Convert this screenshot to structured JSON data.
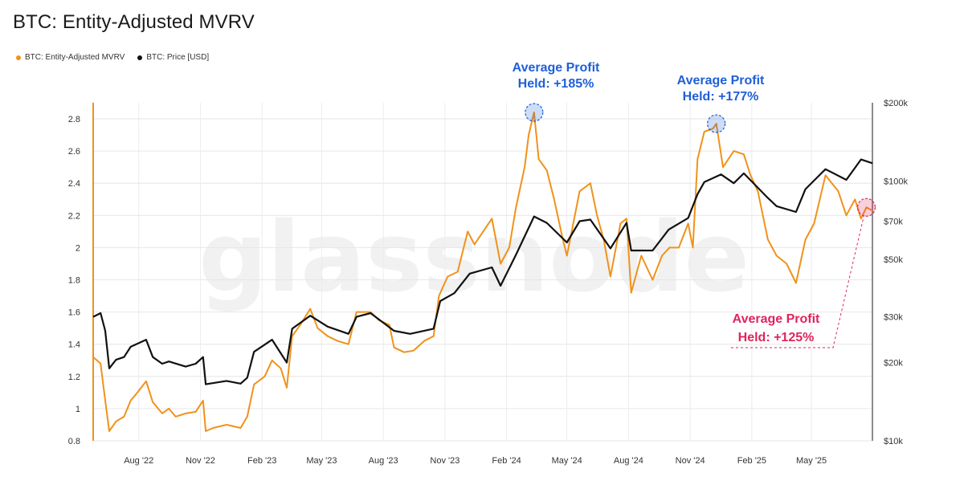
{
  "page": {
    "title": "BTC: Entity-Adjusted MVRV"
  },
  "legend": [
    {
      "label": "BTC: Entity-Adjusted MVRV",
      "color": "#f0921a"
    },
    {
      "label": "BTC: Price [USD]",
      "color": "#111111"
    }
  ],
  "watermark": "glassnode",
  "annotations": [
    {
      "line1": "Average Profit",
      "line2": "Held: +185%",
      "color": "#1f5fd8",
      "marker_date": "2024-03-13",
      "marker_value": 2.84
    },
    {
      "line1": "Average Profit",
      "line2": "Held: +177%",
      "color": "#1f5fd8",
      "marker_date": "2024-12-10",
      "marker_value": 2.77
    },
    {
      "line1": "Average Profit",
      "line2": "Held: +125%",
      "color": "#e0245e",
      "marker_date": "2025-07-22",
      "marker_value": 2.25
    }
  ],
  "chart_data": {
    "type": "line",
    "title": "BTC: Entity-Adjusted MVRV",
    "x_ticks": [
      "Aug '22",
      "Nov '22",
      "Feb '23",
      "May '23",
      "Aug '23",
      "Nov '23",
      "Feb '24",
      "May '24",
      "Aug '24",
      "Nov '24",
      "Feb '25",
      "May '25"
    ],
    "x_range": [
      "2022-05-25",
      "2025-07-31"
    ],
    "y_left_ticks": [
      "0.8",
      "1",
      "1.2",
      "1.4",
      "1.6",
      "1.8",
      "2",
      "2.2",
      "2.4",
      "2.6",
      "2.8"
    ],
    "y_left_range": [
      0.8,
      2.9
    ],
    "y_right_ticks": [
      "$10k",
      "$20k",
      "$30k",
      "$50k",
      "$70k",
      "$100k",
      "$200k"
    ],
    "y_right_values": [
      10000,
      20000,
      30000,
      50000,
      70000,
      100000,
      200000
    ],
    "y_right_scale": "log",
    "y_right_range": [
      10000,
      200000
    ],
    "series": [
      {
        "name": "BTC: Entity-Adjusted MVRV",
        "axis": "left",
        "color": "#f0921a",
        "points": [
          [
            "2022-05-25",
            1.32
          ],
          [
            "2022-06-05",
            1.28
          ],
          [
            "2022-06-12",
            1.05
          ],
          [
            "2022-06-18",
            0.86
          ],
          [
            "2022-06-28",
            0.92
          ],
          [
            "2022-07-10",
            0.95
          ],
          [
            "2022-07-20",
            1.05
          ],
          [
            "2022-07-30",
            1.1
          ],
          [
            "2022-08-12",
            1.17
          ],
          [
            "2022-08-22",
            1.04
          ],
          [
            "2022-09-05",
            0.97
          ],
          [
            "2022-09-15",
            1.0
          ],
          [
            "2022-09-25",
            0.95
          ],
          [
            "2022-10-10",
            0.97
          ],
          [
            "2022-10-25",
            0.98
          ],
          [
            "2022-11-05",
            1.05
          ],
          [
            "2022-11-09",
            0.86
          ],
          [
            "2022-11-20",
            0.88
          ],
          [
            "2022-12-10",
            0.9
          ],
          [
            "2022-12-31",
            0.88
          ],
          [
            "2023-01-10",
            0.95
          ],
          [
            "2023-01-20",
            1.15
          ],
          [
            "2023-02-05",
            1.2
          ],
          [
            "2023-02-16",
            1.3
          ],
          [
            "2023-03-01",
            1.25
          ],
          [
            "2023-03-10",
            1.13
          ],
          [
            "2023-03-18",
            1.45
          ],
          [
            "2023-03-30",
            1.52
          ],
          [
            "2023-04-14",
            1.62
          ],
          [
            "2023-04-25",
            1.5
          ],
          [
            "2023-05-10",
            1.45
          ],
          [
            "2023-05-25",
            1.42
          ],
          [
            "2023-06-10",
            1.4
          ],
          [
            "2023-06-22",
            1.6
          ],
          [
            "2023-07-13",
            1.6
          ],
          [
            "2023-07-25",
            1.55
          ],
          [
            "2023-08-10",
            1.52
          ],
          [
            "2023-08-17",
            1.38
          ],
          [
            "2023-09-01",
            1.35
          ],
          [
            "2023-09-15",
            1.36
          ],
          [
            "2023-10-01",
            1.42
          ],
          [
            "2023-10-15",
            1.45
          ],
          [
            "2023-10-23",
            1.7
          ],
          [
            "2023-11-05",
            1.82
          ],
          [
            "2023-11-20",
            1.85
          ],
          [
            "2023-12-05",
            2.1
          ],
          [
            "2023-12-15",
            2.02
          ],
          [
            "2024-01-10",
            2.18
          ],
          [
            "2024-01-23",
            1.9
          ],
          [
            "2024-02-05",
            2.0
          ],
          [
            "2024-02-15",
            2.25
          ],
          [
            "2024-02-28",
            2.5
          ],
          [
            "2024-03-05",
            2.7
          ],
          [
            "2024-03-13",
            2.84
          ],
          [
            "2024-03-20",
            2.55
          ],
          [
            "2024-04-01",
            2.48
          ],
          [
            "2024-04-12",
            2.3
          ],
          [
            "2024-04-25",
            2.05
          ],
          [
            "2024-05-01",
            1.95
          ],
          [
            "2024-05-20",
            2.35
          ],
          [
            "2024-06-05",
            2.4
          ],
          [
            "2024-06-15",
            2.2
          ],
          [
            "2024-06-25",
            2.05
          ],
          [
            "2024-07-05",
            1.82
          ],
          [
            "2024-07-20",
            2.15
          ],
          [
            "2024-07-29",
            2.18
          ],
          [
            "2024-08-05",
            1.72
          ],
          [
            "2024-08-20",
            1.95
          ],
          [
            "2024-09-06",
            1.8
          ],
          [
            "2024-09-20",
            1.95
          ],
          [
            "2024-10-01",
            2.0
          ],
          [
            "2024-10-15",
            2.0
          ],
          [
            "2024-10-29",
            2.15
          ],
          [
            "2024-11-05",
            2.0
          ],
          [
            "2024-11-12",
            2.55
          ],
          [
            "2024-11-22",
            2.72
          ],
          [
            "2024-12-05",
            2.74
          ],
          [
            "2024-12-10",
            2.77
          ],
          [
            "2024-12-20",
            2.5
          ],
          [
            "2025-01-05",
            2.6
          ],
          [
            "2025-01-20",
            2.58
          ],
          [
            "2025-01-30",
            2.45
          ],
          [
            "2025-02-10",
            2.35
          ],
          [
            "2025-02-25",
            2.05
          ],
          [
            "2025-03-10",
            1.95
          ],
          [
            "2025-03-25",
            1.9
          ],
          [
            "2025-04-08",
            1.78
          ],
          [
            "2025-04-22",
            2.05
          ],
          [
            "2025-05-05",
            2.15
          ],
          [
            "2025-05-22",
            2.45
          ],
          [
            "2025-06-10",
            2.35
          ],
          [
            "2025-06-22",
            2.2
          ],
          [
            "2025-07-05",
            2.3
          ],
          [
            "2025-07-14",
            2.18
          ],
          [
            "2025-07-22",
            2.25
          ],
          [
            "2025-07-31",
            2.23
          ]
        ]
      },
      {
        "name": "BTC: Price [USD]",
        "axis": "right",
        "color": "#111111",
        "points": [
          [
            "2022-05-25",
            30000
          ],
          [
            "2022-06-05",
            31000
          ],
          [
            "2022-06-12",
            26500
          ],
          [
            "2022-06-18",
            19000
          ],
          [
            "2022-06-28",
            20500
          ],
          [
            "2022-07-10",
            21000
          ],
          [
            "2022-07-20",
            23000
          ],
          [
            "2022-08-12",
            24500
          ],
          [
            "2022-08-22",
            21000
          ],
          [
            "2022-09-05",
            19800
          ],
          [
            "2022-09-15",
            20200
          ],
          [
            "2022-10-10",
            19300
          ],
          [
            "2022-10-25",
            19800
          ],
          [
            "2022-11-05",
            21000
          ],
          [
            "2022-11-09",
            16500
          ],
          [
            "2022-12-10",
            17000
          ],
          [
            "2022-12-31",
            16600
          ],
          [
            "2023-01-10",
            17500
          ],
          [
            "2023-01-20",
            22000
          ],
          [
            "2023-02-16",
            24500
          ],
          [
            "2023-03-10",
            20000
          ],
          [
            "2023-03-18",
            27000
          ],
          [
            "2023-04-14",
            30300
          ],
          [
            "2023-05-10",
            27500
          ],
          [
            "2023-06-10",
            25800
          ],
          [
            "2023-06-22",
            30000
          ],
          [
            "2023-07-13",
            31000
          ],
          [
            "2023-08-17",
            26500
          ],
          [
            "2023-09-10",
            25800
          ],
          [
            "2023-10-15",
            27000
          ],
          [
            "2023-10-25",
            34500
          ],
          [
            "2023-11-15",
            37000
          ],
          [
            "2023-12-08",
            44000
          ],
          [
            "2024-01-10",
            46500
          ],
          [
            "2024-01-23",
            39500
          ],
          [
            "2024-02-15",
            52000
          ],
          [
            "2024-03-13",
            73000
          ],
          [
            "2024-04-01",
            69000
          ],
          [
            "2024-05-01",
            58000
          ],
          [
            "2024-05-20",
            70000
          ],
          [
            "2024-06-05",
            71000
          ],
          [
            "2024-07-05",
            55000
          ],
          [
            "2024-07-29",
            69000
          ],
          [
            "2024-08-05",
            54000
          ],
          [
            "2024-09-06",
            54000
          ],
          [
            "2024-09-30",
            65000
          ],
          [
            "2024-10-29",
            72000
          ],
          [
            "2024-11-12",
            89000
          ],
          [
            "2024-11-22",
            99000
          ],
          [
            "2024-12-17",
            106000
          ],
          [
            "2025-01-05",
            98000
          ],
          [
            "2025-01-20",
            107000
          ],
          [
            "2025-02-25",
            86000
          ],
          [
            "2025-03-10",
            80000
          ],
          [
            "2025-04-08",
            76000
          ],
          [
            "2025-04-22",
            93000
          ],
          [
            "2025-05-22",
            111000
          ],
          [
            "2025-06-22",
            101000
          ],
          [
            "2025-07-14",
            121000
          ],
          [
            "2025-07-31",
            117000
          ]
        ]
      }
    ]
  }
}
